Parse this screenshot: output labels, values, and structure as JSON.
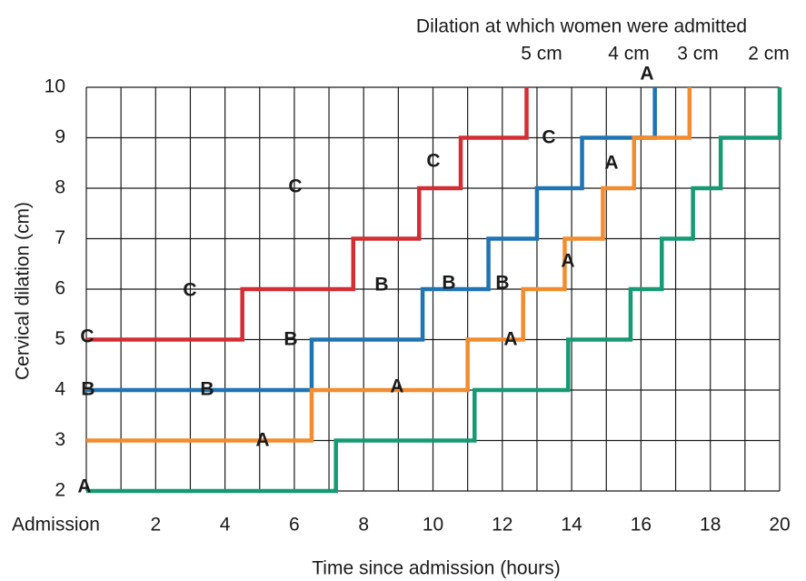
{
  "chart_data": {
    "type": "step",
    "x_label": "Time since admission (hours)",
    "y_label": "Cervical dilation (cm)",
    "legend_title": "Dilation at which women were admitted",
    "xlim": [
      0,
      20
    ],
    "ylim": [
      2,
      10
    ],
    "xticks": [
      {
        "value": 0,
        "label": "Admission"
      },
      2,
      4,
      6,
      8,
      10,
      12,
      14,
      16,
      18,
      20
    ],
    "x_minor_ticks": [
      1,
      3,
      5,
      7,
      9,
      11,
      13,
      15,
      17,
      19
    ],
    "yticks": [
      2,
      3,
      4,
      5,
      6,
      7,
      8,
      9,
      10
    ],
    "grid": true,
    "series": [
      {
        "name": "5 cm",
        "color": "#d42d33",
        "x": [
          0,
          4.5,
          4.5,
          7.7,
          7.7,
          9.6,
          9.6,
          10.8,
          10.8,
          12.7,
          12.7
        ],
        "values": [
          5,
          5,
          6,
          6,
          7,
          7,
          8,
          8,
          9,
          9,
          10
        ]
      },
      {
        "name": "4 cm",
        "color": "#1f74b4",
        "x": [
          0,
          6.5,
          6.5,
          9.7,
          9.7,
          11.6,
          11.6,
          13.0,
          13.0,
          14.3,
          14.3,
          16.4,
          16.4
        ],
        "values": [
          4,
          4,
          5,
          5,
          6,
          6,
          7,
          7,
          8,
          8,
          9,
          9,
          10
        ]
      },
      {
        "name": "3 cm",
        "color": "#f28c2e",
        "x": [
          0,
          6.5,
          6.5,
          11.0,
          11.0,
          12.6,
          12.6,
          13.8,
          13.8,
          14.9,
          14.9,
          15.8,
          15.8,
          17.4,
          17.4
        ],
        "values": [
          3,
          3,
          4,
          4,
          5,
          5,
          6,
          6,
          7,
          7,
          8,
          8,
          9,
          9,
          10
        ]
      },
      {
        "name": "2 cm",
        "color": "#159a73",
        "x": [
          0,
          7.2,
          7.2,
          11.2,
          11.2,
          13.9,
          13.9,
          15.7,
          15.7,
          16.6,
          16.6,
          17.5,
          17.5,
          18.3,
          18.3,
          20,
          20
        ],
        "values": [
          2,
          2,
          3,
          3,
          4,
          4,
          5,
          5,
          6,
          6,
          7,
          7,
          8,
          8,
          9,
          9,
          10
        ]
      }
    ],
    "annotations": [
      "A",
      "C",
      "A",
      "C",
      "C",
      "A",
      "C",
      "B",
      "B",
      "B",
      "C",
      "B",
      "A",
      "B",
      "B",
      "A",
      "A",
      "A"
    ]
  }
}
